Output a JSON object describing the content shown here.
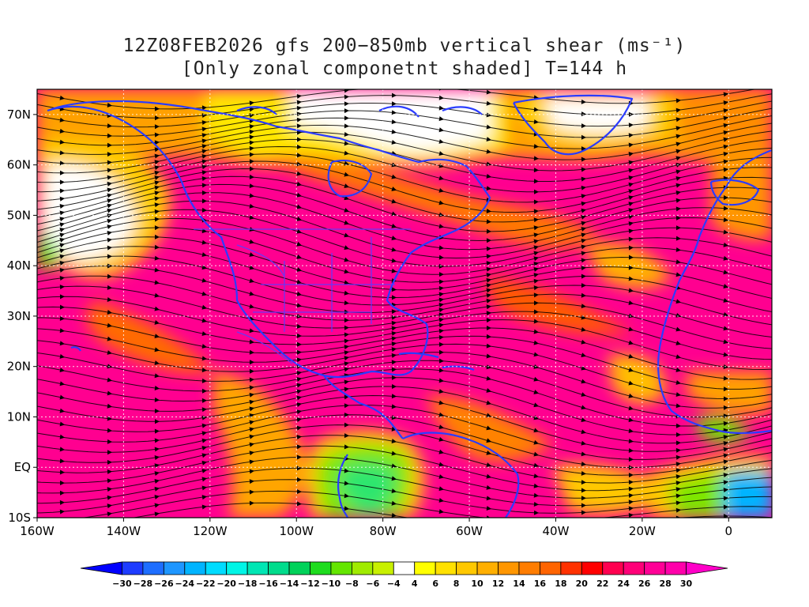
{
  "title": {
    "line1": "12Z08FEB2026 gfs 200−850mb vertical shear (ms⁻¹)",
    "line2": "[Only zonal componetnt shaded] T=144 h"
  },
  "map": {
    "lon_range": [
      -160,
      10
    ],
    "lat_range": [
      -10,
      75
    ],
    "lat_ticks": [
      {
        "value": 70,
        "label": "70N"
      },
      {
        "value": 60,
        "label": "60N"
      },
      {
        "value": 50,
        "label": "50N"
      },
      {
        "value": 40,
        "label": "40N"
      },
      {
        "value": 30,
        "label": "30N"
      },
      {
        "value": 20,
        "label": "20N"
      },
      {
        "value": 10,
        "label": "10N"
      },
      {
        "value": 0,
        "label": "EQ"
      },
      {
        "value": -10,
        "label": "10S"
      }
    ],
    "lon_ticks": [
      {
        "value": -160,
        "label": "160W"
      },
      {
        "value": -140,
        "label": "140W"
      },
      {
        "value": -120,
        "label": "120W"
      },
      {
        "value": -100,
        "label": "100W"
      },
      {
        "value": -80,
        "label": "80W"
      },
      {
        "value": -60,
        "label": "60W"
      },
      {
        "value": -40,
        "label": "40W"
      },
      {
        "value": -20,
        "label": "20W"
      },
      {
        "value": 0,
        "label": "0"
      }
    ],
    "coastline_color": "#2b3cff",
    "streamline_color": "#000000"
  },
  "colorbar": {
    "labels": [
      "−30",
      "−28",
      "−26",
      "−24",
      "−22",
      "−20",
      "−18",
      "−16",
      "−14",
      "−12",
      "−10",
      "−8",
      "−6",
      "−4",
      "4",
      "6",
      "8",
      "10",
      "12",
      "14",
      "16",
      "18",
      "20",
      "22",
      "24",
      "26",
      "28",
      "30"
    ],
    "colors": [
      "#0000ff",
      "#1e3cff",
      "#1e6eff",
      "#1e96ff",
      "#00b4ff",
      "#00dcff",
      "#00f5e6",
      "#00e6b4",
      "#00dc8c",
      "#00d25a",
      "#1edc1e",
      "#64e600",
      "#a0eb00",
      "#c8f000",
      "#ffffff",
      "#ffff00",
      "#ffe100",
      "#ffc800",
      "#ffaf00",
      "#ff9600",
      "#ff7d00",
      "#ff6400",
      "#ff3200",
      "#ff0000",
      "#ff0050",
      "#ff0078",
      "#ff0096",
      "#ff00aa",
      "#ff00c8"
    ]
  }
}
